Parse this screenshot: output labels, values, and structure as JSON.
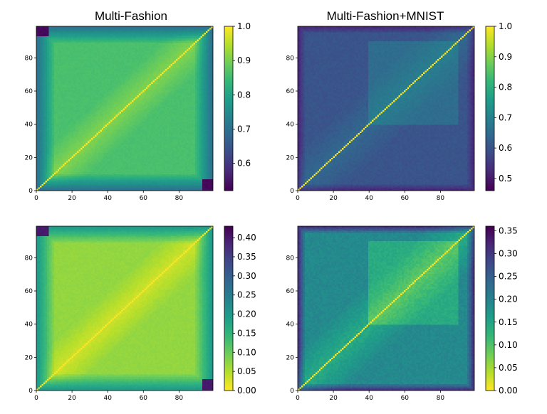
{
  "chart_data": [
    {
      "type": "heatmap",
      "title": "Multi-Fashion",
      "xlabel": "",
      "ylabel": "",
      "x_ticks": [
        "0",
        "20",
        "40",
        "60",
        "80"
      ],
      "y_ticks": [
        "0",
        "20",
        "40",
        "60",
        "80"
      ],
      "x_range": [
        0,
        99
      ],
      "y_range": [
        0,
        99
      ],
      "matrix_size": 100,
      "diagonal_value": 1.0,
      "corner_values": {
        "top_left": 0.53,
        "bottom_right": 0.53,
        "top_right": 1.0,
        "bottom_left": 1.0
      },
      "block_structure": {
        "edge_band_low": 0.7,
        "interior": 0.86,
        "near_diagonal": 0.93
      },
      "colormap": "viridis",
      "colorbar": {
        "min": 0.52,
        "max": 1.0,
        "ticks": [
          "1.0",
          "0.9",
          "0.8",
          "0.7",
          "0.6"
        ],
        "tick_values": [
          1.0,
          0.9,
          0.8,
          0.7,
          0.6
        ]
      }
    },
    {
      "type": "heatmap",
      "title": "Multi-Fashion+MNIST",
      "xlabel": "",
      "ylabel": "",
      "x_ticks": [
        "0",
        "20",
        "40",
        "60",
        "80"
      ],
      "y_ticks": [
        "0",
        "20",
        "40",
        "60",
        "80"
      ],
      "x_range": [
        0,
        99
      ],
      "y_range": [
        0,
        99
      ],
      "matrix_size": 100,
      "diagonal_value": 1.0,
      "corner_values": {
        "top_left": 0.47,
        "bottom_right": 0.48
      },
      "block_structure": {
        "background": 0.6,
        "block_40_to_90": 0.66,
        "near_diagonal": 0.72
      },
      "colormap": "viridis",
      "colorbar": {
        "min": 0.46,
        "max": 1.0,
        "ticks": [
          "1.0",
          "0.9",
          "0.8",
          "0.7",
          "0.6",
          "0.5"
        ],
        "tick_values": [
          1.0,
          0.9,
          0.8,
          0.7,
          0.6,
          0.5
        ]
      }
    },
    {
      "type": "heatmap",
      "title": "",
      "xlabel": "",
      "ylabel": "",
      "x_ticks": [
        "0",
        "20",
        "40",
        "60",
        "80"
      ],
      "y_ticks": [
        "0",
        "20",
        "40",
        "60",
        "80"
      ],
      "x_range": [
        0,
        99
      ],
      "y_range": [
        0,
        99
      ],
      "matrix_size": 100,
      "diagonal_value": 0.0,
      "corner_values": {
        "top_left": 0.4,
        "bottom_right": 0.4
      },
      "block_structure": {
        "edge_band": 0.2,
        "interior": 0.07,
        "near_diagonal": 0.03
      },
      "colormap": "viridis_r",
      "colorbar": {
        "min": 0.0,
        "max": 0.43,
        "ticks": [
          "0.40",
          "0.35",
          "0.30",
          "0.25",
          "0.20",
          "0.15",
          "0.10",
          "0.05",
          "0.00"
        ],
        "tick_values": [
          0.4,
          0.35,
          0.3,
          0.25,
          0.2,
          0.15,
          0.1,
          0.05,
          0.0
        ]
      }
    },
    {
      "type": "heatmap",
      "title": "",
      "xlabel": "",
      "ylabel": "",
      "x_ticks": [
        "0",
        "20",
        "40",
        "60",
        "80"
      ],
      "y_ticks": [
        "0",
        "20",
        "40",
        "60",
        "80"
      ],
      "x_range": [
        0,
        99
      ],
      "y_range": [
        0,
        99
      ],
      "matrix_size": 100,
      "diagonal_value": 0.0,
      "corner_values": {
        "top_left": 0.35,
        "bottom_right": 0.34
      },
      "block_structure": {
        "background": 0.19,
        "block_40_to_90": 0.13,
        "near_diagonal": 0.08
      },
      "colormap": "viridis_r",
      "colorbar": {
        "min": 0.0,
        "max": 0.36,
        "ticks": [
          "0.35",
          "0.30",
          "0.25",
          "0.20",
          "0.15",
          "0.10",
          "0.05",
          "0.00"
        ],
        "tick_values": [
          0.35,
          0.3,
          0.25,
          0.2,
          0.15,
          0.1,
          0.05,
          0.0
        ]
      }
    }
  ]
}
